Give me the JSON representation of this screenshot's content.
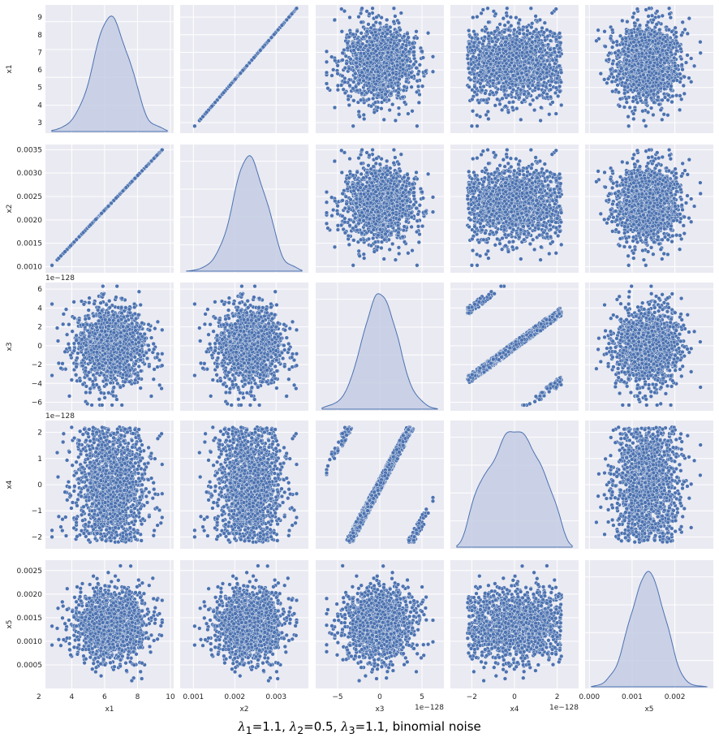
{
  "caption": {
    "lambda_symbol": "λ",
    "lambda1": "1.1",
    "lambda2": "0.5",
    "lambda3": "1.1",
    "noise": "binomial noise"
  },
  "style": {
    "panel_bg": "#eaeaf2",
    "grid": "#ffffff",
    "marker": "#4c72b0",
    "marker_edge": "#ffffff",
    "kde_fill": "#c4cde4"
  },
  "chart_data": {
    "type": "scatter",
    "kind": "pairplot",
    "grid_on": true,
    "variables": [
      {
        "name": "x1",
        "range": [
          2.4,
          10.2
        ],
        "ticks": [
          2,
          4,
          6,
          8,
          10
        ],
        "tick_labels": [
          "2",
          "4",
          "6",
          "8",
          "10"
        ],
        "y_ticks": [
          3,
          4,
          5,
          6,
          7,
          8,
          9
        ],
        "y_tick_labels": [
          "3",
          "4",
          "5",
          "6",
          "7",
          "8",
          "9"
        ],
        "y_range": [
          2.4,
          9.7
        ],
        "offset": "",
        "distribution": {
          "kind": "normal",
          "mean": 6.35,
          "sd": 1.1,
          "min": 2.8,
          "max": 9.5
        }
      },
      {
        "name": "x2",
        "range": [
          0.00068,
          0.00378
        ],
        "ticks": [
          0.001,
          0.002,
          0.003
        ],
        "tick_labels": [
          "0.001",
          "0.002",
          "0.003"
        ],
        "y_ticks": [
          0.001,
          0.0015,
          0.002,
          0.0025,
          0.003,
          0.0035
        ],
        "y_tick_labels": [
          "0.0010",
          "0.0015",
          "0.0020",
          "0.0025",
          "0.0030",
          "0.0035"
        ],
        "y_range": [
          0.00087,
          0.00361
        ],
        "offset": "",
        "relation": "x2 = 0.000368 * x1 (exact linear)"
      },
      {
        "name": "x3",
        "range": [
          -7.6,
          7.6
        ],
        "ticks": [
          -5,
          0,
          5
        ],
        "tick_labels": [
          "−5",
          "0",
          "5"
        ],
        "y_ticks": [
          -6,
          -4,
          -2,
          0,
          2,
          4,
          6
        ],
        "y_tick_labels": [
          "−6",
          "−4",
          "−2",
          "0",
          "2",
          "4",
          "6"
        ],
        "y_range": [
          -6.9,
          6.7
        ],
        "offset": "1e−128",
        "distribution": {
          "kind": "normal",
          "mean": 0,
          "sd": 2.1,
          "min": -6.3,
          "max": 6.3
        }
      },
      {
        "name": "x4",
        "range": [
          -3.0,
          3.0
        ],
        "ticks": [
          -2,
          0,
          2
        ],
        "tick_labels": [
          "−2",
          "0",
          "2"
        ],
        "y_ticks": [
          -2,
          -1,
          0,
          1,
          2
        ],
        "y_tick_labels": [
          "−2",
          "−1",
          "0",
          "1",
          "2"
        ],
        "y_range": [
          -2.45,
          2.45
        ],
        "offset": "1e−128",
        "distribution": {
          "kind": "uniform",
          "min": -2.2,
          "max": 2.2
        }
      },
      {
        "name": "x5",
        "range": [
          -0.0001,
          0.0029
        ],
        "ticks": [
          0,
          0.001,
          0.002
        ],
        "tick_labels": [
          "0.000",
          "0.001",
          "0.002"
        ],
        "y_ticks": [
          0.0005,
          0.001,
          0.0015,
          0.002,
          0.0025
        ],
        "y_tick_labels": [
          "0.0005",
          "0.0010",
          "0.0015",
          "0.0020",
          "0.0025"
        ],
        "y_range": [
          0,
          0.00272
        ],
        "offset": "",
        "distribution": {
          "kind": "normal",
          "mean": 0.00135,
          "sd": 0.00038,
          "min": 0.0001,
          "max": 0.0026
        }
      }
    ],
    "relationships": [
      {
        "pair": [
          "x1",
          "x2"
        ],
        "shape": "perfect positive line"
      },
      {
        "pair": [
          "x3",
          "x4"
        ],
        "shape": "sheared parallel bands (x4 wraps within ±2.2)"
      }
    ],
    "sample_size_approx": 2000
  }
}
